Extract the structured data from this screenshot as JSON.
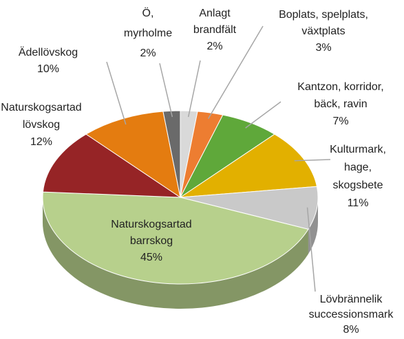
{
  "chart_data": {
    "type": "pie3d",
    "categories": [
      [
        "Anlagt",
        "brandfält"
      ],
      [
        "Boplats, spelplats,",
        "växtplats"
      ],
      [
        "Kantzon, korridor,",
        "bäck, ravin"
      ],
      [
        "Kulturmark,",
        "hage,",
        "skogsbete"
      ],
      [
        "Lövbrännelik",
        "successionsmark"
      ],
      [
        "Naturskogsartad",
        "barrskog"
      ],
      [
        "Naturskogsartad",
        "lövskog"
      ],
      [
        "Ädellövskog"
      ],
      [
        "Ö,",
        "myrholme"
      ]
    ],
    "values": [
      2,
      3,
      7,
      11,
      8,
      45,
      12,
      10,
      2
    ],
    "value_labels": [
      "2%",
      "3%",
      "7%",
      "11%",
      "8%",
      "45%",
      "12%",
      "10%",
      "2%"
    ],
    "colors": [
      "#d9d9d9",
      "#ed7d31",
      "#5fa83a",
      "#e2b000",
      "#c9c9c9",
      "#b7d08c",
      "#962426",
      "#e47c10",
      "#6a6a6a"
    ]
  }
}
